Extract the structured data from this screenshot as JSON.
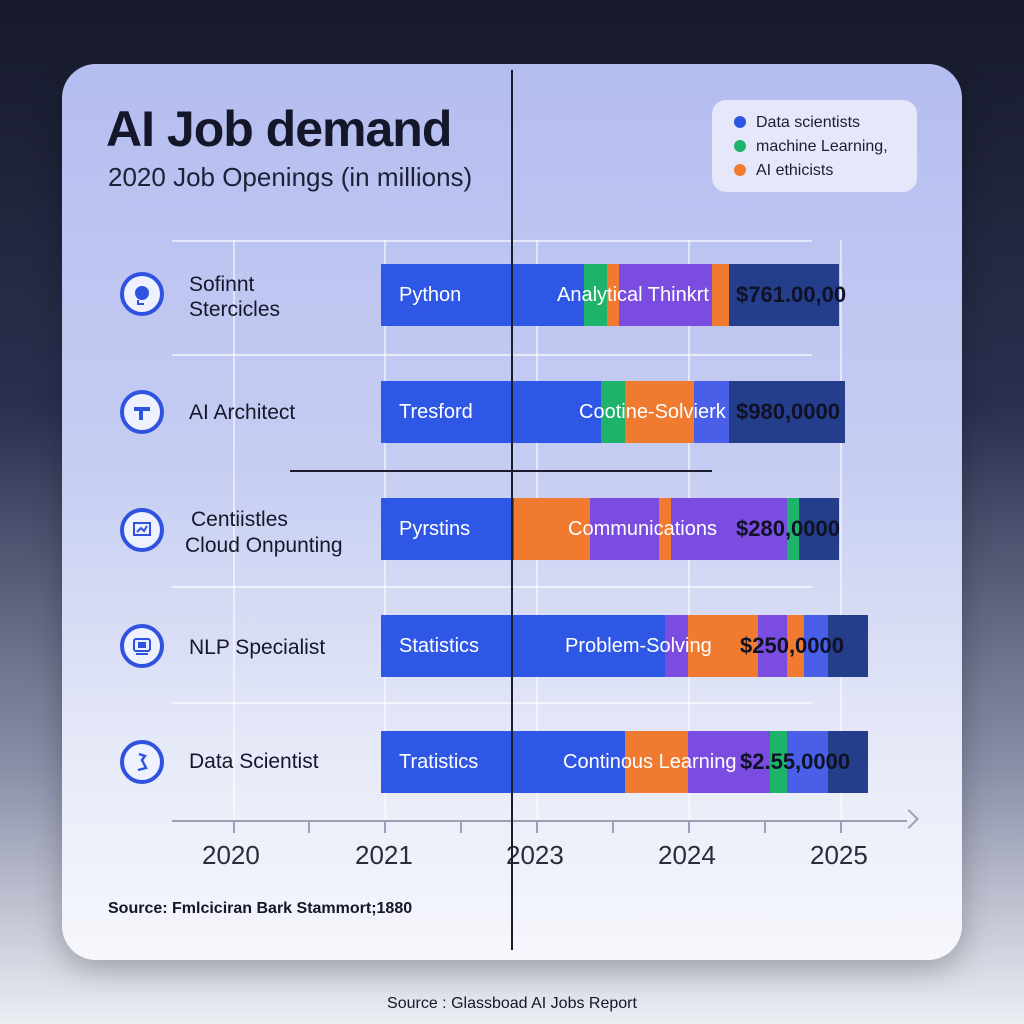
{
  "header": {
    "title": "AI Job demand",
    "subtitle": "2020 Job Openings (in millions)"
  },
  "legend": [
    {
      "label": "Data scientists",
      "color": "#2f57e6"
    },
    {
      "label": "machine Learning,",
      "color": "#1db36a"
    },
    {
      "label": "AI ethicists",
      "color": "#f07a30"
    }
  ],
  "rows": [
    {
      "role": [
        "Sofinnt",
        "Stercicles"
      ],
      "icon": "brain-head-icon",
      "skill1": "Python",
      "skill2": "Analytical Thinkrt",
      "salary": "$761.00,00"
    },
    {
      "role": [
        "AI Architect"
      ],
      "icon": "architecture-icon",
      "skill1": "Tresford",
      "skill2": "Cootine-Solvierk",
      "salary": "$980,0000"
    },
    {
      "role": [
        "Centiistles",
        "Cloud Onpunting"
      ],
      "icon": "cloud-chart-icon",
      "skill1": "Pyrstins",
      "skill2": "Communications",
      "salary": "$280,0000"
    },
    {
      "role": [
        "NLP Specialist"
      ],
      "icon": "language-icon",
      "skill1": "Statistics",
      "skill2": "Problem-Solving",
      "salary": "$250,0000"
    },
    {
      "role": [
        "Data Scientist"
      ],
      "icon": "data-scientist-icon",
      "skill1": "Tratistics",
      "skill2": "Continous Learning",
      "salary": "$2.55,0000"
    }
  ],
  "chart_data": {
    "type": "bar",
    "title": "AI Job demand",
    "subtitle": "2020 Job Openings (in millions)",
    "x_ticks": [
      "2020",
      "2021",
      "2023",
      "2024",
      "2025"
    ],
    "categories": [
      "Sofinnt Stercicles",
      "AI Architect",
      "Centiistles Cloud Onpunting",
      "NLP Specialist",
      "Data Scientist"
    ],
    "series": [
      {
        "name": "Data scientists",
        "color": "#2f57e6"
      },
      {
        "name": "machine Learning,",
        "color": "#1db36a"
      },
      {
        "name": "AI ethicists",
        "color": "#f07a30"
      }
    ],
    "segments": [
      [
        {
          "color": "#2f57e6",
          "value": 0.35
        },
        {
          "color": "#1db36a",
          "value": 0.04
        },
        {
          "color": "#f07a30",
          "value": 0.02
        },
        {
          "color": "#7a4de0",
          "value": 0.16
        },
        {
          "color": "#f07a30",
          "value": 0.03
        },
        {
          "color": "#253e8c",
          "value": 0.19
        }
      ],
      [
        {
          "color": "#2f57e6",
          "value": 0.38
        },
        {
          "color": "#1db36a",
          "value": 0.04
        },
        {
          "color": "#f07a30",
          "value": 0.12
        },
        {
          "color": "#4a5fe8",
          "value": 0.06
        },
        {
          "color": "#253e8c",
          "value": 0.2
        }
      ],
      [
        {
          "color": "#2f57e6",
          "value": 0.23
        },
        {
          "color": "#f07a30",
          "value": 0.13
        },
        {
          "color": "#7a4de0",
          "value": 0.12
        },
        {
          "color": "#f07a30",
          "value": 0.02
        },
        {
          "color": "#7a4de0",
          "value": 0.2
        },
        {
          "color": "#1db36a",
          "value": 0.02
        },
        {
          "color": "#253e8c",
          "value": 0.07
        }
      ],
      [
        {
          "color": "#2f57e6",
          "value": 0.49
        },
        {
          "color": "#7a4de0",
          "value": 0.04
        },
        {
          "color": "#f07a30",
          "value": 0.12
        },
        {
          "color": "#7a4de0",
          "value": 0.05
        },
        {
          "color": "#f07a30",
          "value": 0.03
        },
        {
          "color": "#4a5fe8",
          "value": 0.04
        },
        {
          "color": "#253e8c",
          "value": 0.07
        }
      ],
      [
        {
          "color": "#2f57e6",
          "value": 0.42
        },
        {
          "color": "#f07a30",
          "value": 0.11
        },
        {
          "color": "#7a4de0",
          "value": 0.14
        },
        {
          "color": "#1db36a",
          "value": 0.03
        },
        {
          "color": "#4a5fe8",
          "value": 0.07
        },
        {
          "color": "#253e8c",
          "value": 0.07
        }
      ]
    ],
    "salaries": [
      "$761.00,00",
      "$980,0000",
      "$280,0000",
      "$250,0000",
      "$2.55,0000"
    ]
  },
  "sources": {
    "card_source": "Source: Fmlciciran Bark Stammort;1880",
    "footer_source": "Source : Glassboad AI Jobs Report"
  }
}
